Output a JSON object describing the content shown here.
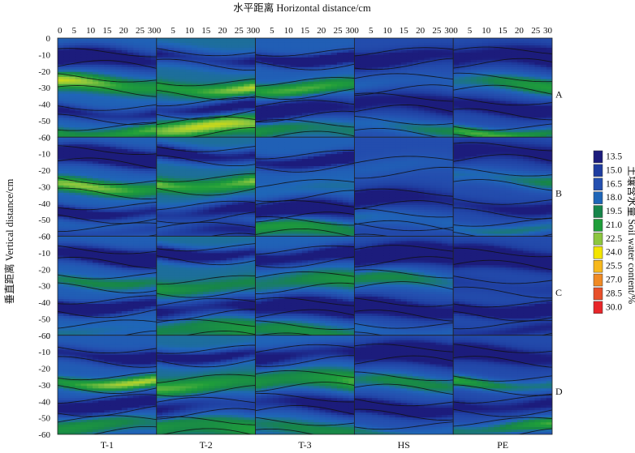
{
  "chart_data": {
    "type": "heatmap",
    "title": "",
    "xlabel": "水平距离 Horizontal distance/cm",
    "ylabel": "垂直距离 Vertical distance/cm",
    "colorbar_label": "土壤含水量 Soil water content/%",
    "x_ticks": [
      "0",
      "5",
      "10",
      "15",
      "20",
      "25",
      "30"
    ],
    "y_ticks": [
      "0",
      "-10",
      "-20",
      "-30",
      "-40",
      "-50",
      "-60"
    ],
    "columns": [
      "T-1",
      "T-2",
      "T-3",
      "HS",
      "PE"
    ],
    "rows": [
      "A",
      "B",
      "C",
      "D"
    ],
    "xlim": [
      0,
      30
    ],
    "ylim": [
      -60,
      0
    ],
    "colorbar": {
      "levels": [
        "13.5",
        "15.0",
        "16.5",
        "18.0",
        "19.5",
        "21.0",
        "22.5",
        "24.0",
        "25.5",
        "27.0",
        "28.5",
        "30.0"
      ],
      "colors": [
        "#1c1c7c",
        "#1f3da0",
        "#2450b0",
        "#1f66b8",
        "#17854a",
        "#1f9e3a",
        "#8cc63f",
        "#f3e500",
        "#f7b81c",
        "#f08a24",
        "#e8502a",
        "#e8262a"
      ]
    },
    "panels": [
      {
        "row": "A",
        "column": "T-1",
        "bands": [
          [
            -13,
            -1.8
          ],
          [
            -28,
            1.5
          ],
          [
            -45,
            -1.6
          ],
          [
            -57,
            1.2
          ]
        ]
      },
      {
        "row": "A",
        "column": "T-2",
        "bands": [
          [
            -12,
            -1.8
          ],
          [
            -30,
            1.3
          ],
          [
            -42,
            -1.6
          ],
          [
            -54,
            1.3
          ]
        ]
      },
      {
        "row": "A",
        "column": "T-3",
        "bands": [
          [
            -12,
            -1.8
          ],
          [
            -30,
            1.1
          ],
          [
            -44,
            -1.8
          ],
          [
            -56,
            0.8
          ]
        ]
      },
      {
        "row": "A",
        "column": "HS",
        "bands": [
          [
            -12,
            -1.4
          ],
          [
            -28,
            0.5
          ],
          [
            -40,
            -1.5
          ],
          [
            -54,
            0.9
          ]
        ]
      },
      {
        "row": "A",
        "column": "PE",
        "bands": [
          [
            -12,
            -1.6
          ],
          [
            -28,
            1.2
          ],
          [
            -42,
            -1.2
          ],
          [
            -57,
            1.4
          ]
        ]
      },
      {
        "row": "B",
        "column": "T-1",
        "bands": [
          [
            -12,
            -2.2
          ],
          [
            -30,
            1.3
          ],
          [
            -45,
            -1.9
          ],
          [
            -58,
            -0.8
          ]
        ]
      },
      {
        "row": "B",
        "column": "T-2",
        "bands": [
          [
            -10,
            -2.4
          ],
          [
            -28,
            1.4
          ],
          [
            -45,
            -1.8
          ],
          [
            -58,
            -1.2
          ]
        ]
      },
      {
        "row": "B",
        "column": "T-3",
        "bands": [
          [
            -14,
            -2.0
          ],
          [
            -32,
            0.2
          ],
          [
            -45,
            -1.8
          ],
          [
            -55,
            1.0
          ]
        ]
      },
      {
        "row": "B",
        "column": "HS",
        "bands": [
          [
            -18,
            0.3
          ],
          [
            -38,
            -1.2
          ],
          [
            -50,
            0.7
          ],
          [
            -58,
            -0.2
          ]
        ]
      },
      {
        "row": "B",
        "column": "PE",
        "bands": [
          [
            -10,
            -1.4
          ],
          [
            -25,
            1.0
          ],
          [
            -42,
            -0.9
          ],
          [
            -55,
            0.7
          ]
        ]
      },
      {
        "row": "C",
        "column": "T-1",
        "bands": [
          [
            -12,
            -2.3
          ],
          [
            -27,
            0.6
          ],
          [
            -42,
            -2.0
          ],
          [
            -57,
            0.3
          ]
        ]
      },
      {
        "row": "C",
        "column": "T-2",
        "bands": [
          [
            -10,
            -2.4
          ],
          [
            -30,
            0.6
          ],
          [
            -44,
            -2.1
          ],
          [
            -57,
            0.6
          ]
        ]
      },
      {
        "row": "C",
        "column": "T-3",
        "bands": [
          [
            -12,
            -2.4
          ],
          [
            -28,
            0.7
          ],
          [
            -44,
            -2.0
          ],
          [
            -58,
            0.6
          ]
        ]
      },
      {
        "row": "C",
        "column": "HS",
        "bands": [
          [
            -12,
            -1.8
          ],
          [
            -27,
            0.9
          ],
          [
            -44,
            -1.9
          ],
          [
            -57,
            0.5
          ]
        ]
      },
      {
        "row": "C",
        "column": "PE",
        "bands": [
          [
            -14,
            -2.3
          ],
          [
            -30,
            -0.4
          ],
          [
            -44,
            -2.0
          ],
          [
            -57,
            -0.6
          ]
        ]
      },
      {
        "row": "D",
        "column": "T-1",
        "bands": [
          [
            -12,
            -1.7
          ],
          [
            -28,
            1.5
          ],
          [
            -42,
            -1.7
          ],
          [
            -55,
            0.8
          ]
        ]
      },
      {
        "row": "D",
        "column": "T-2",
        "bands": [
          [
            -12,
            -1.7
          ],
          [
            -30,
            0.9
          ],
          [
            -44,
            -1.5
          ],
          [
            -56,
            0.9
          ]
        ]
      },
      {
        "row": "D",
        "column": "T-3",
        "bands": [
          [
            -12,
            -1.9
          ],
          [
            -28,
            1.1
          ],
          [
            -42,
            -1.7
          ],
          [
            -56,
            0.5
          ]
        ]
      },
      {
        "row": "D",
        "column": "HS",
        "bands": [
          [
            -12,
            -2.0
          ],
          [
            -29,
            0.9
          ],
          [
            -44,
            -1.5
          ],
          [
            -58,
            0.7
          ]
        ]
      },
      {
        "row": "D",
        "column": "PE",
        "bands": [
          [
            -12,
            -1.3
          ],
          [
            -29,
            1.4
          ],
          [
            -42,
            -1.2
          ],
          [
            -56,
            1.5
          ]
        ]
      }
    ]
  }
}
